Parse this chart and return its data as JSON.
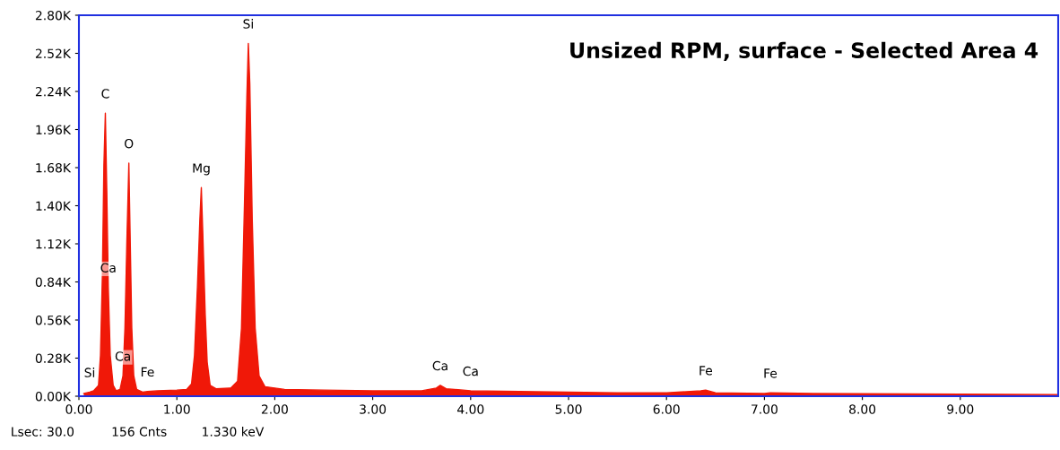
{
  "chart_data": {
    "type": "area",
    "title": "Unsized RPM, surface - Selected Area 4",
    "color": "#f01808",
    "x": [
      0.05,
      0.11,
      0.15,
      0.2,
      0.22,
      0.24,
      0.255,
      0.27,
      0.285,
      0.3,
      0.32,
      0.35,
      0.38,
      0.42,
      0.45,
      0.47,
      0.49,
      0.51,
      0.525,
      0.54,
      0.56,
      0.59,
      0.65,
      0.7,
      0.8,
      1.0,
      1.1,
      1.15,
      1.18,
      1.21,
      1.235,
      1.25,
      1.265,
      1.29,
      1.31,
      1.34,
      1.4,
      1.55,
      1.62,
      1.66,
      1.69,
      1.715,
      1.73,
      1.745,
      1.77,
      1.8,
      1.84,
      1.9,
      2.1,
      2.5,
      3.0,
      3.5,
      3.65,
      3.69,
      3.75,
      4.0,
      4.5,
      5.0,
      5.5,
      6.0,
      6.35,
      6.4,
      6.5,
      7.0,
      7.06,
      7.5,
      8.0,
      9.0,
      10.0
    ],
    "values": [
      20,
      30,
      40,
      80,
      300,
      900,
      1700,
      2080,
      1500,
      800,
      300,
      80,
      40,
      50,
      150,
      500,
      1150,
      1713,
      1100,
      500,
      150,
      50,
      30,
      35,
      40,
      45,
      50,
      90,
      300,
      800,
      1300,
      1533,
      1200,
      600,
      250,
      80,
      55,
      60,
      110,
      500,
      1400,
      2200,
      2593,
      2300,
      1300,
      500,
      150,
      70,
      50,
      45,
      40,
      40,
      60,
      80,
      55,
      40,
      35,
      30,
      25,
      25,
      40,
      45,
      25,
      20,
      25,
      20,
      18,
      15,
      12
    ],
    "xlim": [
      0,
      10
    ],
    "ylim": [
      0,
      2800
    ],
    "xticks": [
      {
        "value": 0,
        "label": "0.00"
      },
      {
        "value": 1,
        "label": "1.00"
      },
      {
        "value": 2,
        "label": "2.00"
      },
      {
        "value": 3,
        "label": "3.00"
      },
      {
        "value": 4,
        "label": "4.00"
      },
      {
        "value": 5,
        "label": "5.00"
      },
      {
        "value": 6,
        "label": "6.00"
      },
      {
        "value": 7,
        "label": "7.00"
      },
      {
        "value": 8,
        "label": "8.00"
      },
      {
        "value": 9,
        "label": "9.00"
      }
    ],
    "yticks": [
      {
        "value": 0,
        "label": "0.00K"
      },
      {
        "value": 280,
        "label": "0.28K"
      },
      {
        "value": 560,
        "label": "0.56K"
      },
      {
        "value": 840,
        "label": "0.84K"
      },
      {
        "value": 1120,
        "label": "1.12K"
      },
      {
        "value": 1400,
        "label": "1.40K"
      },
      {
        "value": 1680,
        "label": "1.68K"
      },
      {
        "value": 1960,
        "label": "1.96K"
      },
      {
        "value": 2240,
        "label": "2.24K"
      },
      {
        "value": 2520,
        "label": "2.52K"
      },
      {
        "value": 2800,
        "label": "2.80K"
      }
    ],
    "annotations": [
      {
        "text": "Si",
        "x": 0.11,
        "y": 30
      },
      {
        "text": "C",
        "x": 0.27,
        "y": 2080
      },
      {
        "text": "O",
        "x": 0.51,
        "y": 1713
      },
      {
        "text": "Mg",
        "x": 1.25,
        "y": 1533
      },
      {
        "text": "Si",
        "x": 1.73,
        "y": 2593
      },
      {
        "text": "Ca",
        "x": 0.3,
        "y": 800
      },
      {
        "text": "Ca",
        "x": 0.45,
        "y": 150
      },
      {
        "text": "Fe",
        "x": 0.7,
        "y": 35
      },
      {
        "text": "Ca",
        "x": 3.69,
        "y": 80
      },
      {
        "text": "Ca",
        "x": 4.0,
        "y": 40
      },
      {
        "text": "Fe",
        "x": 6.4,
        "y": 45
      },
      {
        "text": "Fe",
        "x": 7.06,
        "y": 25
      },
      "Lsec: 30.0",
      "156 Cnts",
      "1.330 keV"
    ]
  }
}
